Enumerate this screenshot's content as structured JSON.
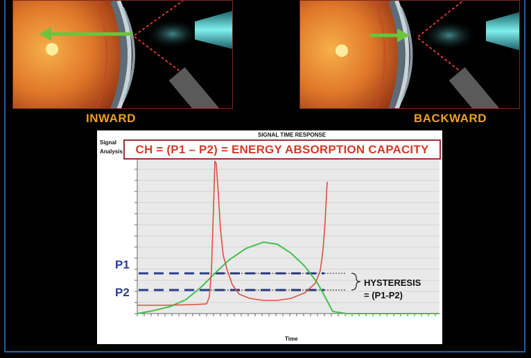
{
  "captions": {
    "left": "INWARD",
    "right": "BACKWARD"
  },
  "chart": {
    "title": "SIGNAL TIME RESPONSE",
    "side_label_line1": "Signal",
    "side_label_line2": "Analysis",
    "formula": "CH = (P1 – P2) = ENERGY ABSORPTION CAPACITY",
    "p1_label": "P1",
    "p2_label": "P2",
    "hysteresis_line1": "HYSTERESIS",
    "hysteresis_line2": "= (P1-P2)",
    "xlabel": "Time"
  },
  "colors": {
    "signal": "#d9503f",
    "pressure": "#3ec24a",
    "p_lines": "#2a3d8f",
    "arrow": "#6bc43c",
    "caption": "#f0a020"
  }
}
